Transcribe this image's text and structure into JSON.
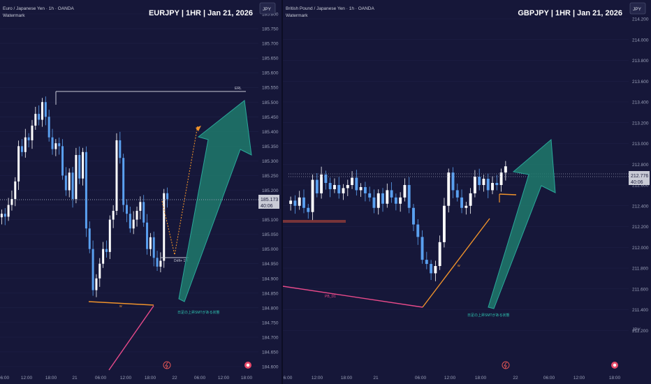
{
  "left_panel": {
    "name": "Euro / Japanese Yen · 1h · OANDA",
    "watermark": "Watermark",
    "title": "EURJPY | 1HR | Jan 21, 2026",
    "currency": "JPY",
    "price_label": "185.173",
    "countdown": "40:06",
    "annotation_erl": "ERL",
    "annotation_drift": "Drift+ 1H",
    "annotation_jp": "日足の上昇SMTがある状態",
    "small_labels": [
      "w"
    ],
    "x_ticks": [
      "06:00",
      "12:00",
      "18:00",
      "21",
      "06:00",
      "12:00",
      "18:00",
      "22",
      "06:00",
      "12:00",
      "18:00"
    ]
  },
  "right_panel": {
    "name": "British Pound / Japanese Yen · 1h · OANDA",
    "watermark": "Watermark",
    "title": "GBPJPY | 1HR | Jan 21, 2026",
    "currency": "JPY",
    "axis_currency": "JPY",
    "price_label": "212.776",
    "countdown": "40:06",
    "annotation_pl": "PB_D1",
    "annotation_jp": "日足の上昇SMTがある状態",
    "small_labels": [
      "w"
    ],
    "x_ticks": [
      "6:00",
      "12:00",
      "18:00",
      "21",
      "06:00",
      "12:00",
      "18:00",
      "22",
      "06:00",
      "12:00",
      "18:00"
    ]
  },
  "chart_data": [
    {
      "type": "candlestick",
      "title": "EURJPY | 1HR | Jan 21, 2026",
      "symbol": "Euro / Japanese Yen · 1h · OANDA",
      "y_unit": "JPY",
      "ylim": [
        184.6,
        185.8
      ],
      "y_ticks": [
        "185.800",
        "185.750",
        "185.700",
        "185.650",
        "185.600",
        "185.550",
        "185.500",
        "185.450",
        "185.400",
        "185.350",
        "185.300",
        "185.250",
        "185.200",
        "185.150",
        "185.100",
        "185.050",
        "185.000",
        "184.950",
        "184.900",
        "184.850",
        "184.800",
        "184.750",
        "184.700",
        "184.650",
        "184.600"
      ],
      "current_price": 185.173,
      "erl_level": 185.56,
      "candles_close": [
        185.12,
        185.11,
        185.15,
        185.17,
        185.23,
        185.35,
        185.33,
        185.38,
        185.37,
        185.42,
        185.46,
        185.44,
        185.5,
        185.45,
        185.38,
        185.34,
        185.36,
        185.35,
        185.25,
        185.2,
        185.26,
        185.17,
        185.32,
        185.24,
        185.33,
        185.07,
        185.0,
        184.86,
        184.9,
        184.95,
        185.0,
        184.99,
        185.1,
        185.13,
        185.37,
        185.31,
        185.15,
        185.12,
        185.07,
        185.1,
        185.13,
        185.16,
        185.09,
        185.0,
        185.04,
        184.97,
        184.94,
        184.96,
        185.19,
        185.17
      ]
    },
    {
      "type": "candlestick",
      "title": "GBPJPY | 1HR | Jan 21, 2026",
      "symbol": "British Pound / Japanese Yen · 1h · OANDA",
      "y_unit": "JPY",
      "ylim": [
        211.0,
        214.2
      ],
      "y_ticks": [
        "214.200",
        "214.000",
        "213.800",
        "213.600",
        "213.400",
        "213.200",
        "213.000",
        "212.800",
        "212.600",
        "212.400",
        "212.200",
        "212.000",
        "211.800",
        "211.600",
        "211.400",
        "211.200"
      ],
      "current_price": 212.776,
      "candles_close": [
        212.45,
        212.4,
        212.48,
        212.38,
        212.34,
        212.65,
        212.52,
        212.7,
        212.62,
        212.56,
        212.6,
        212.52,
        212.57,
        212.6,
        212.67,
        212.55,
        212.58,
        212.52,
        212.48,
        212.38,
        212.52,
        212.42,
        212.55,
        212.48,
        212.42,
        212.48,
        212.6,
        212.38,
        212.22,
        212.1,
        211.88,
        211.84,
        211.75,
        211.82,
        212.05,
        212.4,
        212.72,
        212.55,
        212.48,
        212.38,
        212.4,
        212.52,
        212.68,
        212.6,
        212.66,
        212.55,
        212.62,
        212.6,
        212.72,
        212.78
      ]
    }
  ]
}
